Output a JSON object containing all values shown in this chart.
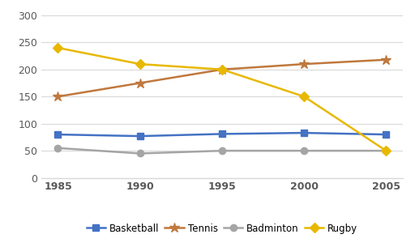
{
  "years": [
    1985,
    1990,
    1995,
    2000,
    2005
  ],
  "series": {
    "Basketball": {
      "values": [
        80,
        77,
        81,
        83,
        80
      ],
      "color": "#4472C4",
      "marker": "s",
      "markersize": 6
    },
    "Tennis": {
      "values": [
        150,
        175,
        200,
        210,
        218
      ],
      "color": "#C0783C",
      "marker": "*",
      "markersize": 9
    },
    "Badminton": {
      "values": [
        55,
        45,
        50,
        50,
        50
      ],
      "color": "#A5A5A5",
      "marker": "o",
      "markersize": 6
    },
    "Rugby": {
      "values": [
        240,
        210,
        200,
        150,
        50
      ],
      "color": "#E8B800",
      "marker": "D",
      "markersize": 6
    }
  },
  "ylim": [
    0,
    310
  ],
  "yticks": [
    0,
    50,
    100,
    150,
    200,
    250,
    300
  ],
  "background_color": "#FFFFFF",
  "grid_color": "#D9D9D9",
  "legend_order": [
    "Basketball",
    "Tennis",
    "Badminton",
    "Rugby"
  ],
  "tick_label_fontsize": 9,
  "tick_label_color": "#595959",
  "linewidth": 1.8
}
